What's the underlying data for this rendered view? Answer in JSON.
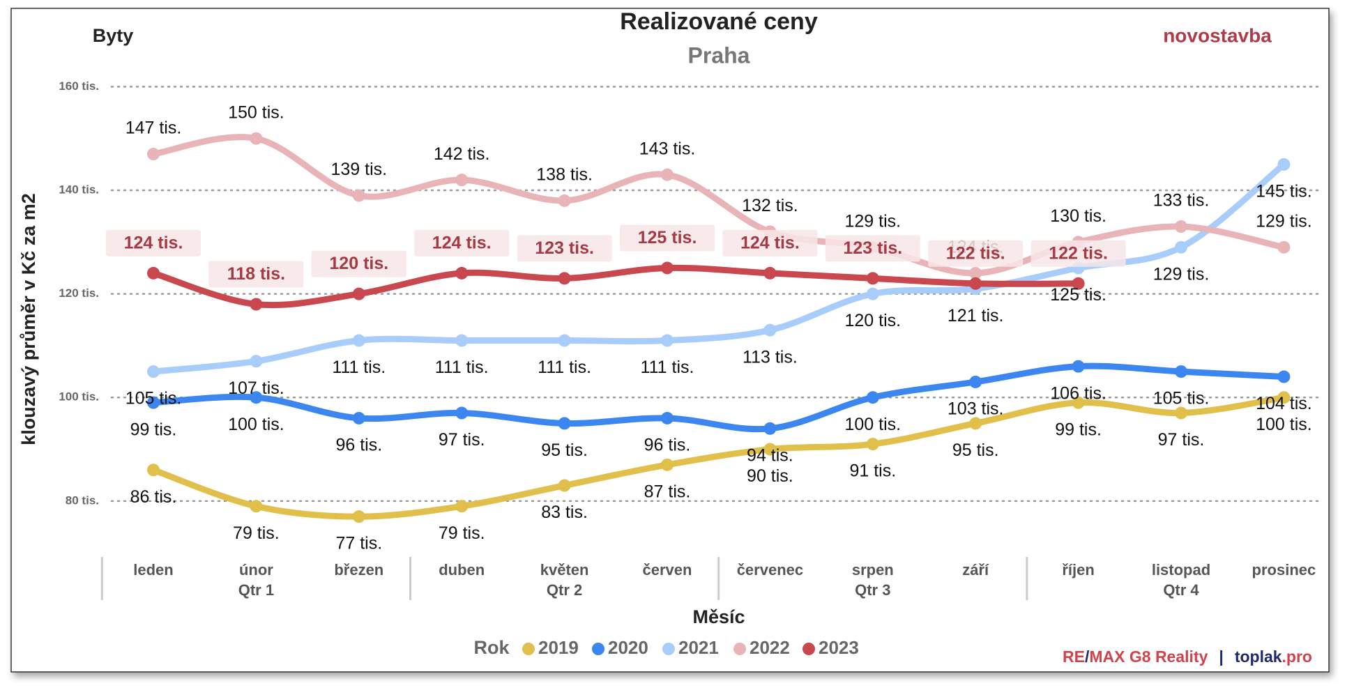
{
  "chart_data": {
    "type": "line",
    "title": "Realizované ceny",
    "subtitle": "Praha",
    "corner_left": "Byty",
    "corner_right": "novostavba",
    "x_label": "Měsíc",
    "y_label": "klouzavý průměr v Kč za m2",
    "legend_title": "Rok",
    "footer": [
      "RE",
      "/",
      "MAX G8 Reality",
      "|",
      "toplak",
      ".pro"
    ],
    "categories": [
      "leden",
      "únor",
      "březen",
      "duben",
      "květen",
      "červen",
      "červenec",
      "srpen",
      "září",
      "říjen",
      "listopad",
      "prosinec"
    ],
    "quarters": [
      "Qtr 1",
      "Qtr 2",
      "Qtr 3",
      "Qtr 4"
    ],
    "ylim": [
      75000,
      161000
    ],
    "yticks": [
      {
        "value": 80000,
        "label": "80 tis."
      },
      {
        "value": 100000,
        "label": "100 tis."
      },
      {
        "value": 120000,
        "label": "120 tis."
      },
      {
        "value": 140000,
        "label": "140 tis."
      },
      {
        "value": 160000,
        "label": "160 tis."
      }
    ],
    "grid": true,
    "series": [
      {
        "name": "2019",
        "color": "#e0c04a",
        "label_pos": "below",
        "values": [
          86000,
          79000,
          77000,
          79000,
          83000,
          87000,
          90000,
          91000,
          95000,
          99000,
          97000,
          100000
        ],
        "value_labels": [
          "86 tis.",
          "79 tis.",
          "77 tis.",
          "79 tis.",
          "83 tis.",
          "87 tis.",
          "90 tis.",
          "91 tis.",
          "95 tis.",
          "99 tis.",
          "97 tis.",
          "100 tis."
        ]
      },
      {
        "name": "2020",
        "color": "#3b87ef",
        "label_pos": "below",
        "values": [
          99000,
          100000,
          96000,
          97000,
          95000,
          96000,
          94000,
          100000,
          103000,
          106000,
          105000,
          104000
        ],
        "value_labels": [
          "99 tis.",
          "100 tis.",
          "96 tis.",
          "97 tis.",
          "95 tis.",
          "96 tis.",
          "94 tis.",
          "100 tis.",
          "103 tis.",
          "106 tis.",
          "105 tis.",
          "104 tis."
        ]
      },
      {
        "name": "2021",
        "color": "#a9cdfb",
        "label_pos": "below",
        "values": [
          105000,
          107000,
          111000,
          111000,
          111000,
          111000,
          113000,
          120000,
          121000,
          125000,
          129000,
          145000
        ],
        "value_labels": [
          "105 tis.",
          "107 tis.",
          "111 tis.",
          "111 tis.",
          "111 tis.",
          "111 tis.",
          "113 tis.",
          "120 tis.",
          "121 tis.",
          "125 tis.",
          "129 tis.",
          "145 tis."
        ]
      },
      {
        "name": "2022",
        "color": "#e8b4b8",
        "label_pos": "above",
        "values": [
          147000,
          150000,
          139000,
          142000,
          138000,
          143000,
          132000,
          129000,
          124000,
          130000,
          133000,
          129000
        ],
        "value_labels": [
          "147 tis.",
          "150 tis.",
          "139 tis.",
          "142 tis.",
          "138 tis.",
          "143 tis.",
          "132 tis.",
          "129 tis.",
          "124 tis.",
          "130 tis.",
          "133 tis.",
          "129 tis."
        ]
      },
      {
        "name": "2023",
        "color": "#c9474f",
        "label_pos": "box",
        "values": [
          124000,
          118000,
          120000,
          124000,
          123000,
          125000,
          124000,
          123000,
          122000,
          122000,
          null,
          null
        ],
        "value_labels": [
          "124 tis.",
          "118 tis.",
          "120 tis.",
          "124 tis.",
          "123 tis.",
          "125 tis.",
          "124 tis.",
          "123 tis.",
          "122 tis.",
          "122 tis.",
          null,
          null
        ]
      }
    ]
  }
}
